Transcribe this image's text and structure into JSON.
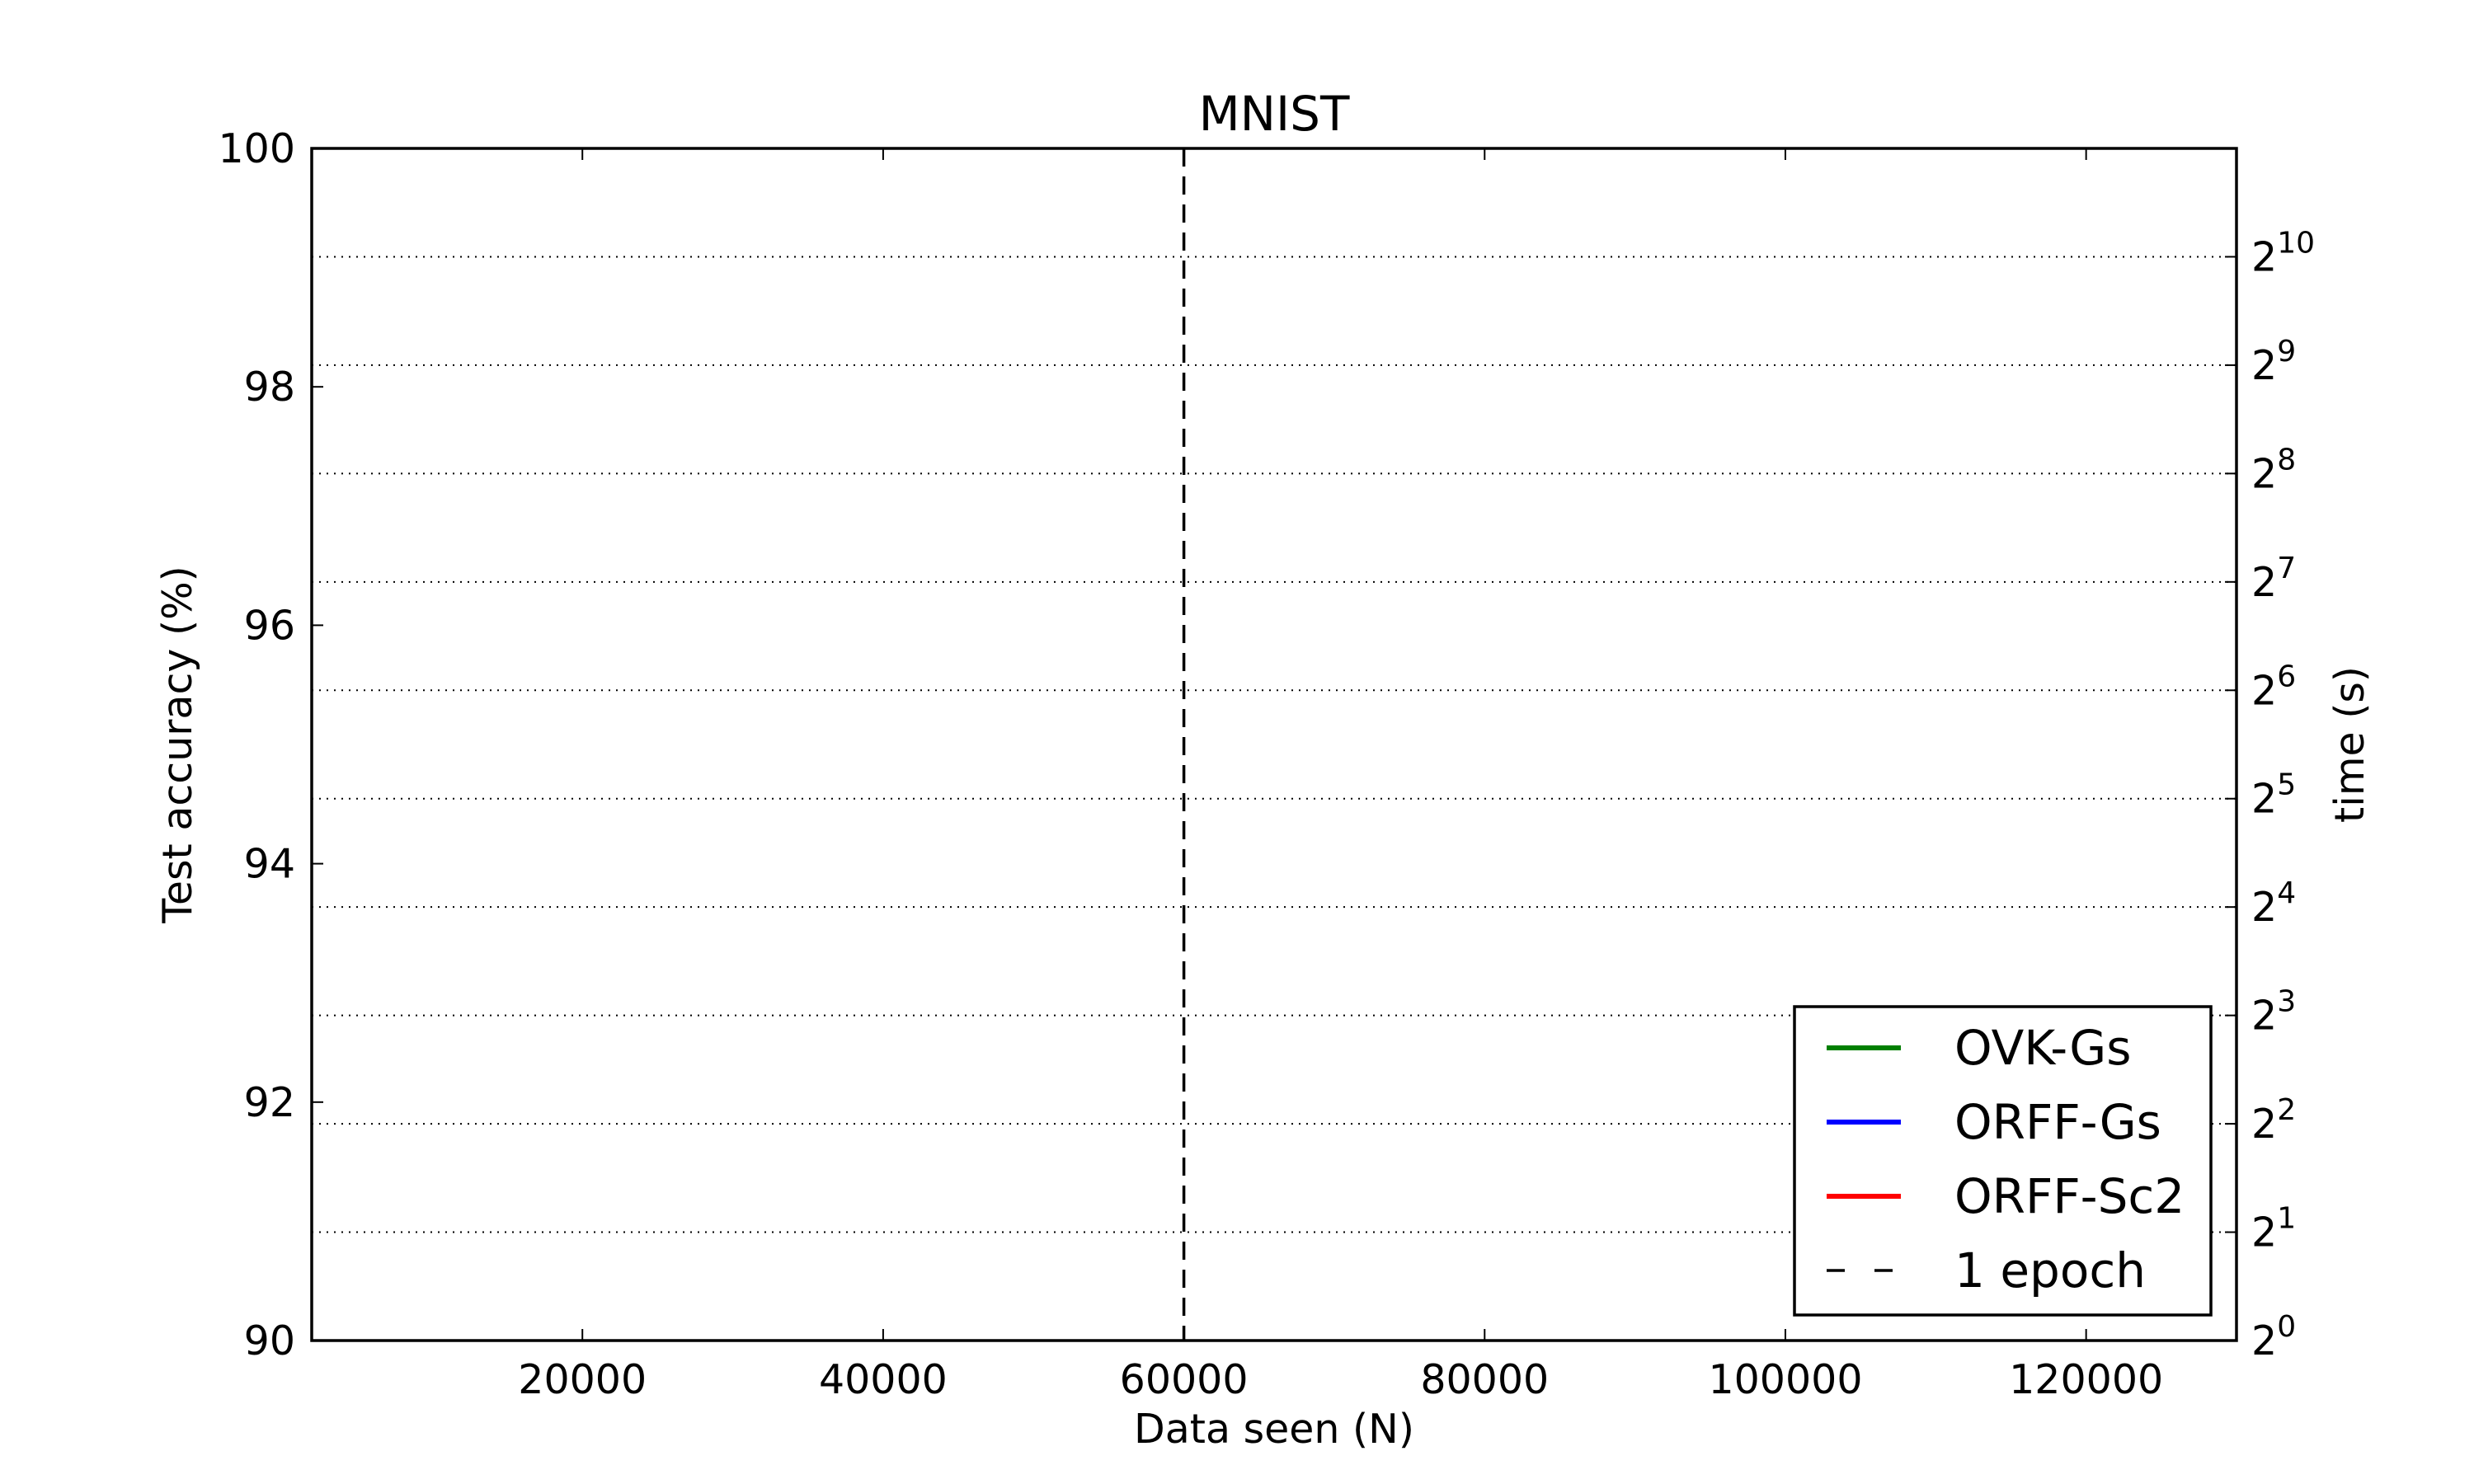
{
  "chart_data": {
    "type": "line",
    "title": "MNIST",
    "xlabel": "Data seen (N)",
    "ylabel": "Test accuracy (%)",
    "y2label": "time (s)",
    "xlim": [
      2000,
      130000
    ],
    "ylim": [
      90,
      100
    ],
    "y2lim_log2": [
      0,
      11
    ],
    "y2scale": "log2",
    "xticks": [
      20000,
      40000,
      60000,
      80000,
      100000,
      120000
    ],
    "yticks": [
      90,
      92,
      94,
      96,
      98,
      100
    ],
    "y2ticks": [
      {
        "base": "2",
        "exp": "0",
        "value": 1
      },
      {
        "base": "2",
        "exp": "1",
        "value": 2
      },
      {
        "base": "2",
        "exp": "2",
        "value": 4
      },
      {
        "base": "2",
        "exp": "3",
        "value": 8
      },
      {
        "base": "2",
        "exp": "4",
        "value": 16
      },
      {
        "base": "2",
        "exp": "5",
        "value": 32
      },
      {
        "base": "2",
        "exp": "6",
        "value": 64
      },
      {
        "base": "2",
        "exp": "7",
        "value": 128
      },
      {
        "base": "2",
        "exp": "8",
        "value": 256
      },
      {
        "base": "2",
        "exp": "9",
        "value": 512
      },
      {
        "base": "2",
        "exp": "10",
        "value": 1024
      }
    ],
    "y2grid": "dotted",
    "series": [
      {
        "name": "OVK-Gs",
        "color": "#007f00",
        "style": "solid",
        "values": []
      },
      {
        "name": "ORFF-Gs",
        "color": "#0000ff",
        "style": "solid",
        "values": []
      },
      {
        "name": "ORFF-Sc2",
        "color": "#ff0000",
        "style": "solid",
        "values": []
      },
      {
        "name": "1 epoch",
        "color": "#000000",
        "style": "dashed",
        "x": 60000
      }
    ],
    "legend_position": "lower-right"
  }
}
